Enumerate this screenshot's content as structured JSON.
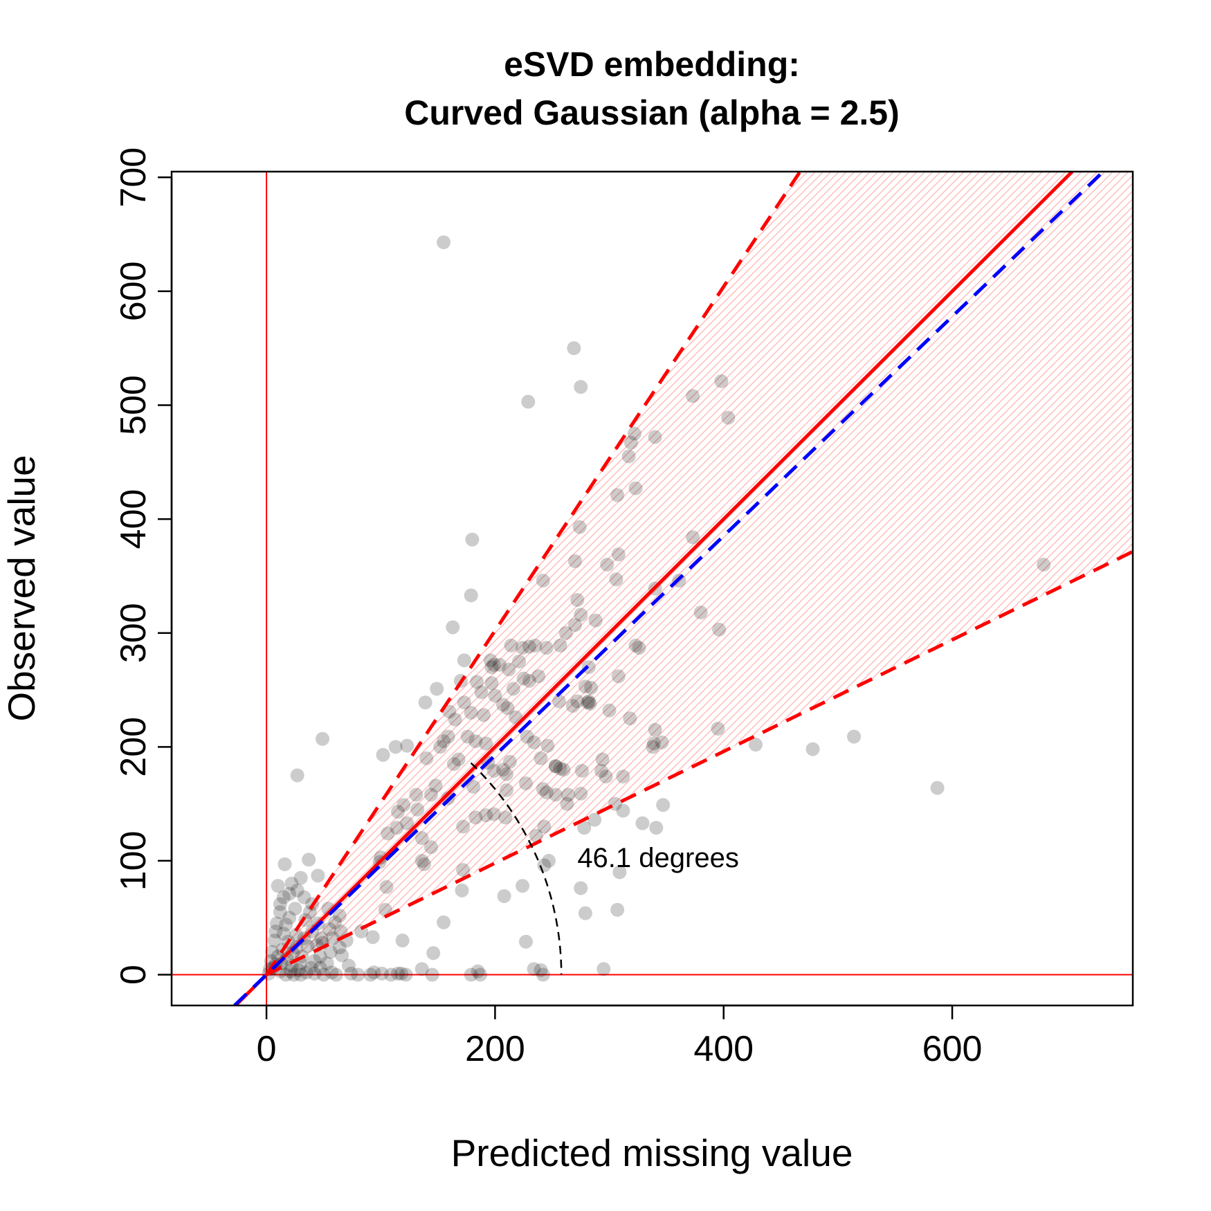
{
  "chart_data": {
    "type": "scatter",
    "title": [
      "eSVD embedding:",
      "Curved Gaussian (alpha = 2.5)"
    ],
    "xlabel": "Predicted missing value",
    "ylabel": "Observed value",
    "xlim": [
      -83,
      758
    ],
    "ylim": [
      -27,
      705
    ],
    "xticks": [
      0,
      200,
      400,
      600
    ],
    "yticks": [
      0,
      100,
      200,
      300,
      400,
      500,
      600,
      700
    ],
    "grid": false,
    "colors": {
      "points": "#000000",
      "reference_lines": "#ff0000",
      "fit_line": "#0000ff",
      "band_fill": "#ffb3b3",
      "arc": "#000000"
    },
    "reference_lines": {
      "vertical_x": 0,
      "horizontal_y": 0,
      "identity_slope": 1,
      "band_upper_slope": 1.51,
      "band_lower_slope": 0.49
    },
    "fitted_line": {
      "slope": 0.963,
      "intercept": 0
    },
    "angle_annotation": {
      "text": "46.1 degrees",
      "angle_degrees": 46.1,
      "radius": 258,
      "label_x": 272,
      "label_y": 103
    },
    "points": [
      [
        155,
        643
      ],
      [
        269,
        550
      ],
      [
        275,
        516
      ],
      [
        229,
        503
      ],
      [
        373,
        508
      ],
      [
        398,
        521
      ],
      [
        404,
        489
      ],
      [
        319,
        467
      ],
      [
        317,
        455
      ],
      [
        322,
        475
      ],
      [
        340,
        472
      ],
      [
        323,
        427
      ],
      [
        307,
        421
      ],
      [
        306,
        347
      ],
      [
        308,
        369
      ],
      [
        274,
        393
      ],
      [
        373,
        384
      ],
      [
        361,
        346
      ],
      [
        340,
        339
      ],
      [
        323,
        289
      ],
      [
        298,
        360
      ],
      [
        288,
        311
      ],
      [
        270,
        363
      ],
      [
        242,
        346
      ],
      [
        180,
        382
      ],
      [
        179,
        333
      ],
      [
        163,
        305
      ],
      [
        326,
        287
      ],
      [
        272,
        329
      ],
      [
        275,
        316
      ],
      [
        270,
        307
      ],
      [
        262,
        300
      ],
      [
        257,
        289
      ],
      [
        245,
        287
      ],
      [
        235,
        289
      ],
      [
        230,
        288
      ],
      [
        214,
        289
      ],
      [
        224,
        287
      ],
      [
        196,
        276
      ],
      [
        199,
        272
      ],
      [
        204,
        272
      ],
      [
        221,
        275
      ],
      [
        212,
        268
      ],
      [
        197,
        270
      ],
      [
        173,
        276
      ],
      [
        238,
        262
      ],
      [
        230,
        258
      ],
      [
        216,
        251
      ],
      [
        225,
        260
      ],
      [
        282,
        270
      ],
      [
        284,
        252
      ],
      [
        279,
        253
      ],
      [
        308,
        262
      ],
      [
        272,
        240
      ],
      [
        256,
        240
      ],
      [
        282,
        240
      ],
      [
        268,
        236
      ],
      [
        281,
        239
      ],
      [
        283,
        238
      ],
      [
        300,
        232
      ],
      [
        197,
        256
      ],
      [
        184,
        257
      ],
      [
        173,
        239
      ],
      [
        160,
        231
      ],
      [
        149,
        251
      ],
      [
        139,
        239
      ],
      [
        170,
        258
      ],
      [
        165,
        224
      ],
      [
        188,
        248
      ],
      [
        200,
        245
      ],
      [
        207,
        237
      ],
      [
        211,
        234
      ],
      [
        218,
        226
      ],
      [
        190,
        228
      ],
      [
        179,
        230
      ],
      [
        176,
        209
      ],
      [
        183,
        205
      ],
      [
        192,
        203
      ],
      [
        159,
        209
      ],
      [
        155,
        205
      ],
      [
        164,
        185
      ],
      [
        168,
        189
      ],
      [
        194,
        186
      ],
      [
        199,
        179
      ],
      [
        207,
        180
      ],
      [
        213,
        187
      ],
      [
        210,
        176
      ],
      [
        228,
        209
      ],
      [
        234,
        204
      ],
      [
        253,
        183
      ],
      [
        246,
        201
      ],
      [
        253,
        183
      ],
      [
        260,
        180
      ],
      [
        276,
        179
      ],
      [
        240,
        190
      ],
      [
        245,
        160
      ],
      [
        253,
        158
      ],
      [
        264,
        158
      ],
      [
        275,
        159
      ],
      [
        297,
        174
      ],
      [
        294,
        189
      ],
      [
        312,
        174
      ],
      [
        318,
        225
      ],
      [
        338,
        200
      ],
      [
        339,
        203
      ],
      [
        346,
        204
      ],
      [
        340,
        215
      ],
      [
        380,
        318
      ],
      [
        396,
        303
      ],
      [
        395,
        216
      ],
      [
        242,
        163
      ],
      [
        227,
        168
      ],
      [
        210,
        162
      ],
      [
        199,
        141
      ],
      [
        192,
        140
      ],
      [
        209,
        138
      ],
      [
        181,
        165
      ],
      [
        183,
        138
      ],
      [
        172,
        130
      ],
      [
        159,
        155
      ],
      [
        148,
        166
      ],
      [
        144,
        158
      ],
      [
        152,
        200
      ],
      [
        140,
        190
      ],
      [
        131,
        158
      ],
      [
        120,
        149
      ],
      [
        132,
        145
      ],
      [
        123,
        133
      ],
      [
        115,
        143
      ],
      [
        102,
        193
      ],
      [
        113,
        200
      ],
      [
        123,
        201
      ],
      [
        136,
        120
      ],
      [
        144,
        112
      ],
      [
        138,
        97
      ],
      [
        136,
        100
      ],
      [
        114,
        129
      ],
      [
        106,
        124
      ],
      [
        100,
        103
      ],
      [
        99,
        99
      ],
      [
        93,
        33
      ],
      [
        105,
        77
      ],
      [
        104,
        57
      ],
      [
        119,
        30
      ],
      [
        172,
        92
      ],
      [
        171,
        74
      ],
      [
        208,
        69
      ],
      [
        227,
        29
      ],
      [
        155,
        46
      ],
      [
        146,
        19
      ],
      [
        136,
        5
      ],
      [
        115,
        1
      ],
      [
        118,
        1
      ],
      [
        122,
        0
      ],
      [
        145,
        0
      ],
      [
        179,
        0
      ],
      [
        185,
        3
      ],
      [
        187,
        0
      ],
      [
        234,
        5
      ],
      [
        242,
        0
      ],
      [
        240,
        4
      ],
      [
        236,
        122
      ],
      [
        243,
        130
      ],
      [
        247,
        100
      ],
      [
        243,
        96
      ],
      [
        224,
        78
      ],
      [
        275,
        76
      ],
      [
        279,
        54
      ],
      [
        307,
        57
      ],
      [
        309,
        90
      ],
      [
        312,
        144
      ],
      [
        329,
        133
      ],
      [
        341,
        129
      ],
      [
        347,
        149
      ],
      [
        287,
        136
      ],
      [
        278,
        129
      ],
      [
        305,
        150
      ],
      [
        263,
        150
      ],
      [
        257,
        181
      ],
      [
        293,
        179
      ],
      [
        428,
        202
      ],
      [
        478,
        198
      ],
      [
        514,
        209
      ],
      [
        587,
        164
      ],
      [
        680,
        360
      ],
      [
        295,
        5
      ],
      [
        49,
        207
      ],
      [
        27,
        175
      ],
      [
        16,
        97
      ],
      [
        37,
        101
      ],
      [
        45,
        87
      ],
      [
        30,
        85
      ],
      [
        22,
        80
      ],
      [
        20,
        71
      ],
      [
        10,
        78
      ],
      [
        33,
        68
      ],
      [
        40,
        62
      ],
      [
        54,
        58
      ],
      [
        60,
        46
      ],
      [
        65,
        38
      ],
      [
        70,
        30
      ],
      [
        64,
        24
      ],
      [
        66,
        17
      ],
      [
        72,
        8
      ],
      [
        61,
        0
      ],
      [
        57,
        2
      ],
      [
        74,
        1
      ],
      [
        80,
        0
      ],
      [
        91,
        0
      ],
      [
        94,
        2
      ],
      [
        101,
        1
      ],
      [
        109,
        0
      ],
      [
        83,
        38
      ],
      [
        64,
        52
      ],
      [
        55,
        40
      ],
      [
        48,
        32
      ],
      [
        44,
        26
      ],
      [
        45,
        45
      ],
      [
        26,
        35
      ],
      [
        20,
        50
      ],
      [
        12,
        55
      ],
      [
        8,
        38
      ],
      [
        5,
        20
      ],
      [
        6,
        6
      ],
      [
        2,
        1
      ],
      [
        4,
        12
      ],
      [
        7,
        30
      ],
      [
        14,
        22
      ],
      [
        13,
        10
      ],
      [
        22,
        8
      ],
      [
        28,
        4
      ],
      [
        35,
        2
      ],
      [
        42,
        1
      ],
      [
        50,
        0
      ],
      [
        17,
        0
      ],
      [
        24,
        0
      ],
      [
        30,
        0
      ],
      [
        12,
        62
      ],
      [
        17,
        44
      ],
      [
        25,
        58
      ],
      [
        34,
        48
      ],
      [
        40,
        38
      ],
      [
        47,
        16
      ],
      [
        53,
        10
      ],
      [
        9,
        45
      ],
      [
        15,
        68
      ],
      [
        27,
        74
      ],
      [
        3,
        5
      ],
      [
        10,
        16
      ],
      [
        19,
        29
      ],
      [
        23,
        19
      ],
      [
        31,
        16
      ],
      [
        36,
        25
      ],
      [
        42,
        12
      ],
      [
        47,
        6
      ],
      [
        18,
        14
      ],
      [
        8,
        9
      ],
      [
        26,
        24
      ],
      [
        33,
        32
      ],
      [
        12,
        3
      ],
      [
        21,
        3
      ],
      [
        15,
        36
      ],
      [
        38,
        55
      ],
      [
        49,
        28
      ],
      [
        56,
        20
      ],
      [
        58,
        32
      ],
      [
        30,
        10
      ],
      [
        39,
        6
      ]
    ]
  }
}
